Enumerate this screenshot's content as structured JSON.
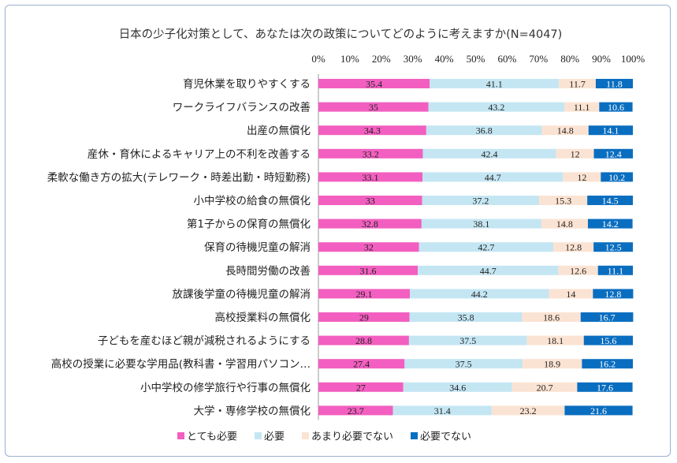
{
  "chart_data": {
    "type": "bar",
    "stacked": "percent",
    "orientation": "horizontal",
    "title": "日本の少子化対策として、あなたは次の政策についてどのように考えますか(N=4047)",
    "xlim": [
      0,
      100
    ],
    "x_ticks": [
      "0%",
      "10%",
      "20%",
      "30%",
      "40%",
      "50%",
      "60%",
      "70%",
      "80%",
      "90%",
      "100%"
    ],
    "legend_position": "bottom",
    "categories": [
      "育児休業を取りやすくする",
      "ワークライフバランスの改善",
      "出産の無償化",
      "産休・育休によるキャリア上の不利を改善する",
      "柔軟な働き方の拡大(テレワーク・時差出勤・時短勤務)",
      "小中学校の給食の無償化",
      "第1子からの保育の無償化",
      "保育の待機児童の解消",
      "長時間労働の改善",
      "放課後学童の待機児童の解消",
      "高校授業料の無償化",
      "子どもを産むほど親が減税されるようにする",
      "高校の授業に必要な学用品(教科書・学習用パソコン…",
      "小中学校の修学旅行や行事の無償化",
      "大学・専修学校の無償化"
    ],
    "series": [
      {
        "name": "とても必要",
        "color": "#f25fc0",
        "label_color": "#222222",
        "values": [
          35.4,
          35,
          34.3,
          33.2,
          33.1,
          33,
          32.8,
          32,
          31.6,
          29.1,
          29,
          28.8,
          27.4,
          27,
          23.7
        ]
      },
      {
        "name": "必要",
        "color": "#c4e6f3",
        "label_color": "#222222",
        "values": [
          41.1,
          43.2,
          36.8,
          42.4,
          44.7,
          37.2,
          38.1,
          42.7,
          44.7,
          44.2,
          35.8,
          37.5,
          37.5,
          34.6,
          31.4
        ]
      },
      {
        "name": "あまり必要でない",
        "color": "#fbe3d3",
        "label_color": "#222222",
        "values": [
          11.7,
          11.1,
          14.8,
          12,
          12,
          15.3,
          14.8,
          12.8,
          12.6,
          14,
          18.6,
          18.1,
          18.9,
          20.7,
          23.2
        ]
      },
      {
        "name": "必要でない",
        "color": "#0a6ec0",
        "label_color": "#ffffff",
        "values": [
          11.8,
          10.6,
          14.1,
          12.4,
          10.2,
          14.5,
          14.2,
          12.5,
          11.1,
          12.8,
          16.7,
          15.6,
          16.2,
          17.6,
          21.6
        ]
      }
    ]
  }
}
